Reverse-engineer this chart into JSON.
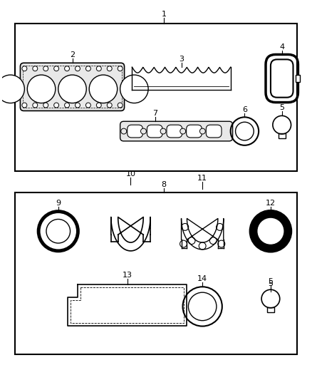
{
  "background_color": "#ffffff",
  "line_color": "#000000",
  "fig_w": 4.38,
  "fig_h": 5.33,
  "dpi": 100
}
